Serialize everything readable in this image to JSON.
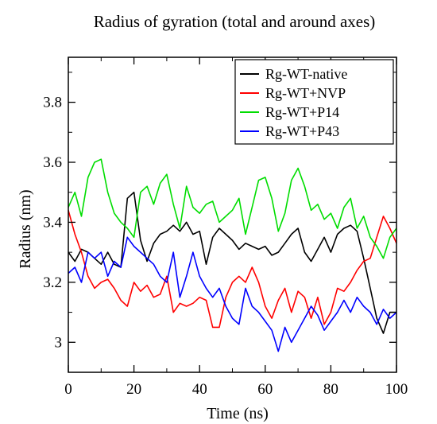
{
  "chart_data": {
    "type": "line",
    "title": "Radius of gyration (total and around axes)",
    "xlabel": "Time (ns)",
    "ylabel": "Radius (nm)",
    "xlim": [
      0,
      100
    ],
    "ylim": [
      2.9,
      3.95
    ],
    "x_ticks": [
      0,
      20,
      40,
      60,
      80,
      100
    ],
    "x_tick_labels": [
      "0",
      "20",
      "40",
      "60",
      "80",
      "100"
    ],
    "y_ticks": [
      3.0,
      3.2,
      3.4,
      3.6,
      3.8
    ],
    "y_tick_labels": [
      "3",
      "3.2",
      "3.4",
      "3.6",
      "3.8"
    ],
    "grid": false,
    "legend_position": "top-right",
    "x": [
      0,
      2,
      4,
      6,
      8,
      10,
      12,
      14,
      16,
      18,
      20,
      22,
      24,
      26,
      28,
      30,
      32,
      34,
      36,
      38,
      40,
      42,
      44,
      46,
      48,
      50,
      52,
      54,
      56,
      58,
      60,
      62,
      64,
      66,
      68,
      70,
      72,
      74,
      76,
      78,
      80,
      82,
      84,
      86,
      88,
      90,
      92,
      94,
      96,
      98,
      100
    ],
    "series": [
      {
        "name": "Rg-WT-native",
        "color": "#000000",
        "values": [
          3.3,
          3.27,
          3.31,
          3.3,
          3.28,
          3.26,
          3.3,
          3.26,
          3.25,
          3.48,
          3.5,
          3.34,
          3.27,
          3.33,
          3.36,
          3.37,
          3.39,
          3.37,
          3.4,
          3.36,
          3.37,
          3.26,
          3.35,
          3.38,
          3.36,
          3.34,
          3.31,
          3.33,
          3.32,
          3.31,
          3.32,
          3.29,
          3.3,
          3.33,
          3.36,
          3.38,
          3.3,
          3.27,
          3.31,
          3.35,
          3.3,
          3.36,
          3.38,
          3.39,
          3.37,
          3.28,
          3.18,
          3.08,
          3.03,
          3.1,
          3.1
        ]
      },
      {
        "name": "Rg-WT+NVP",
        "color": "#ff0000",
        "values": [
          3.44,
          3.36,
          3.3,
          3.22,
          3.18,
          3.2,
          3.21,
          3.18,
          3.14,
          3.12,
          3.2,
          3.17,
          3.19,
          3.15,
          3.16,
          3.22,
          3.1,
          3.13,
          3.12,
          3.13,
          3.15,
          3.14,
          3.05,
          3.05,
          3.15,
          3.2,
          3.22,
          3.2,
          3.25,
          3.2,
          3.12,
          3.08,
          3.14,
          3.18,
          3.1,
          3.17,
          3.15,
          3.08,
          3.15,
          3.06,
          3.1,
          3.18,
          3.17,
          3.2,
          3.24,
          3.27,
          3.28,
          3.35,
          3.42,
          3.38,
          3.33
        ]
      },
      {
        "name": "Rg-WT+P14",
        "color": "#00dd00",
        "values": [
          3.45,
          3.5,
          3.42,
          3.55,
          3.6,
          3.61,
          3.5,
          3.43,
          3.4,
          3.38,
          3.35,
          3.5,
          3.52,
          3.46,
          3.53,
          3.56,
          3.46,
          3.38,
          3.52,
          3.45,
          3.43,
          3.46,
          3.47,
          3.4,
          3.42,
          3.44,
          3.48,
          3.36,
          3.45,
          3.54,
          3.55,
          3.48,
          3.37,
          3.43,
          3.54,
          3.58,
          3.52,
          3.44,
          3.46,
          3.41,
          3.43,
          3.38,
          3.45,
          3.48,
          3.38,
          3.42,
          3.35,
          3.32,
          3.28,
          3.35,
          3.38
        ]
      },
      {
        "name": "Rg-WT+P43",
        "color": "#0000ff",
        "values": [
          3.23,
          3.25,
          3.2,
          3.3,
          3.28,
          3.3,
          3.22,
          3.27,
          3.25,
          3.35,
          3.32,
          3.3,
          3.28,
          3.26,
          3.22,
          3.2,
          3.3,
          3.15,
          3.22,
          3.3,
          3.22,
          3.18,
          3.15,
          3.18,
          3.12,
          3.08,
          3.06,
          3.18,
          3.12,
          3.1,
          3.07,
          3.04,
          2.97,
          3.05,
          3.0,
          3.04,
          3.08,
          3.12,
          3.09,
          3.04,
          3.07,
          3.1,
          3.14,
          3.1,
          3.15,
          3.12,
          3.1,
          3.06,
          3.11,
          3.08,
          3.1
        ]
      }
    ]
  }
}
